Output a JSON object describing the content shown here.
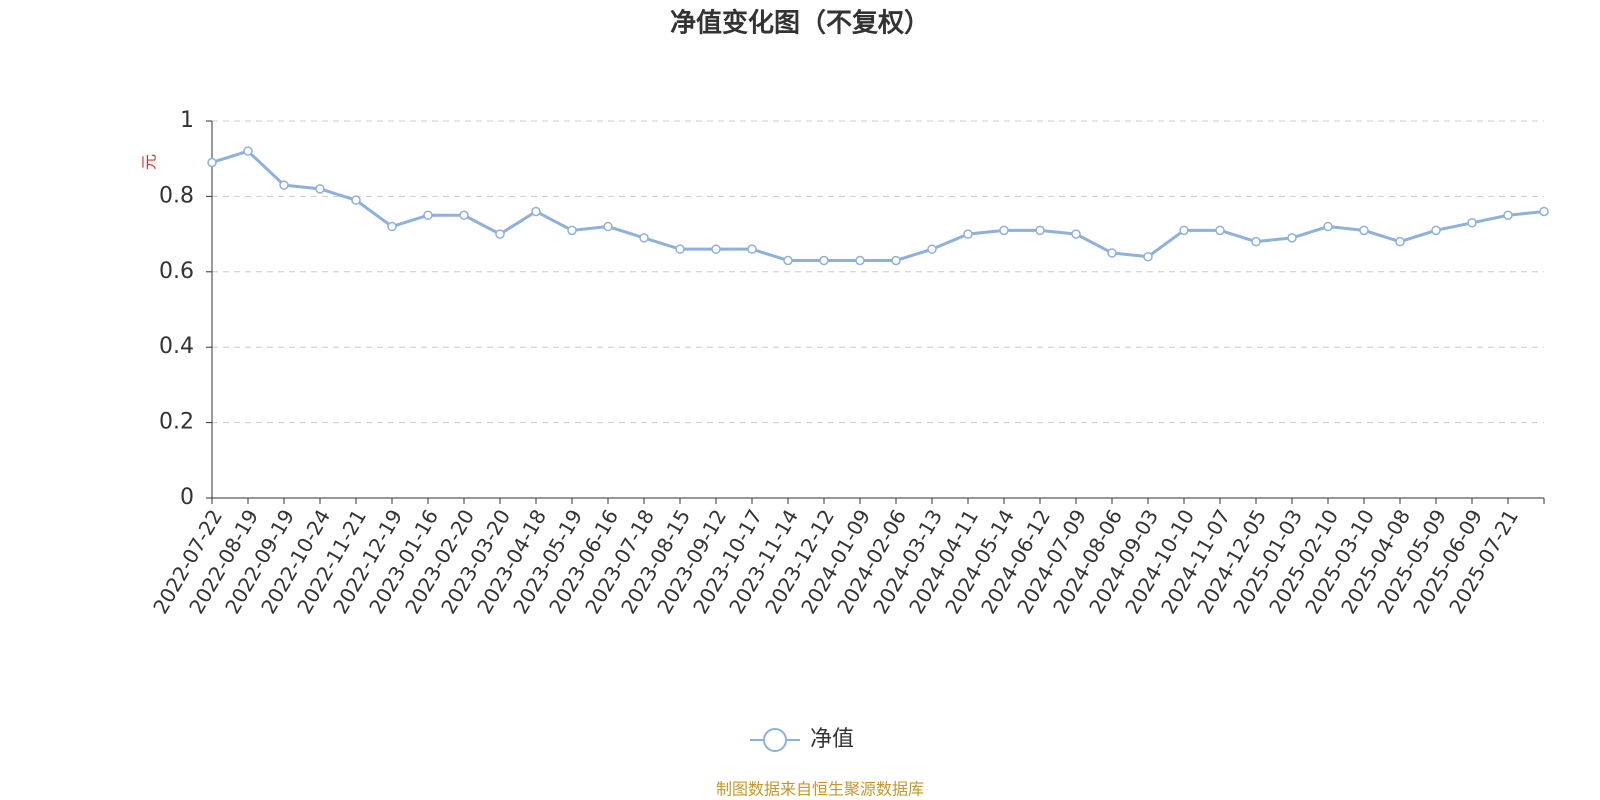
{
  "chart_data": {
    "type": "line",
    "title": "净值变化图（不复权）",
    "y_label": "元",
    "categories": [
      "2022-07-22",
      "2022-08-19",
      "2022-09-19",
      "2022-10-24",
      "2022-11-21",
      "2022-12-19",
      "2023-01-16",
      "2023-02-20",
      "2023-03-20",
      "2023-04-18",
      "2023-05-19",
      "2023-06-16",
      "2023-07-18",
      "2023-08-15",
      "2023-09-12",
      "2023-10-17",
      "2023-11-14",
      "2023-12-12",
      "2024-01-09",
      "2024-02-06",
      "2024-03-13",
      "2024-04-11",
      "2024-05-14",
      "2024-06-12",
      "2024-07-09",
      "2024-08-06",
      "2024-09-03",
      "2024-10-10",
      "2024-11-07",
      "2024-12-05",
      "2025-01-03",
      "2025-02-10",
      "2025-03-10",
      "2025-04-08",
      "2025-05-09",
      "2025-06-09",
      "2025-07-21",
      null
    ],
    "series": [
      {
        "name": "净值",
        "color": "#8eb0dd",
        "values": [
          0.89,
          0.92,
          0.83,
          0.82,
          0.79,
          0.72,
          0.75,
          0.75,
          0.7,
          0.76,
          0.71,
          0.72,
          0.69,
          0.66,
          0.66,
          0.66,
          0.63,
          0.63,
          0.63,
          0.63,
          0.66,
          0.7,
          0.71,
          0.71,
          0.7,
          0.65,
          0.64,
          0.71,
          0.71,
          0.68,
          0.69,
          0.72,
          0.71,
          0.68,
          0.71,
          0.73,
          0.75,
          0.76
        ]
      }
    ],
    "ylim": [
      0,
      1
    ],
    "yticks": [
      0,
      0.2,
      0.4,
      0.6,
      0.8,
      1
    ],
    "grid": true,
    "source": "制图数据来自恒生聚源数据库"
  }
}
